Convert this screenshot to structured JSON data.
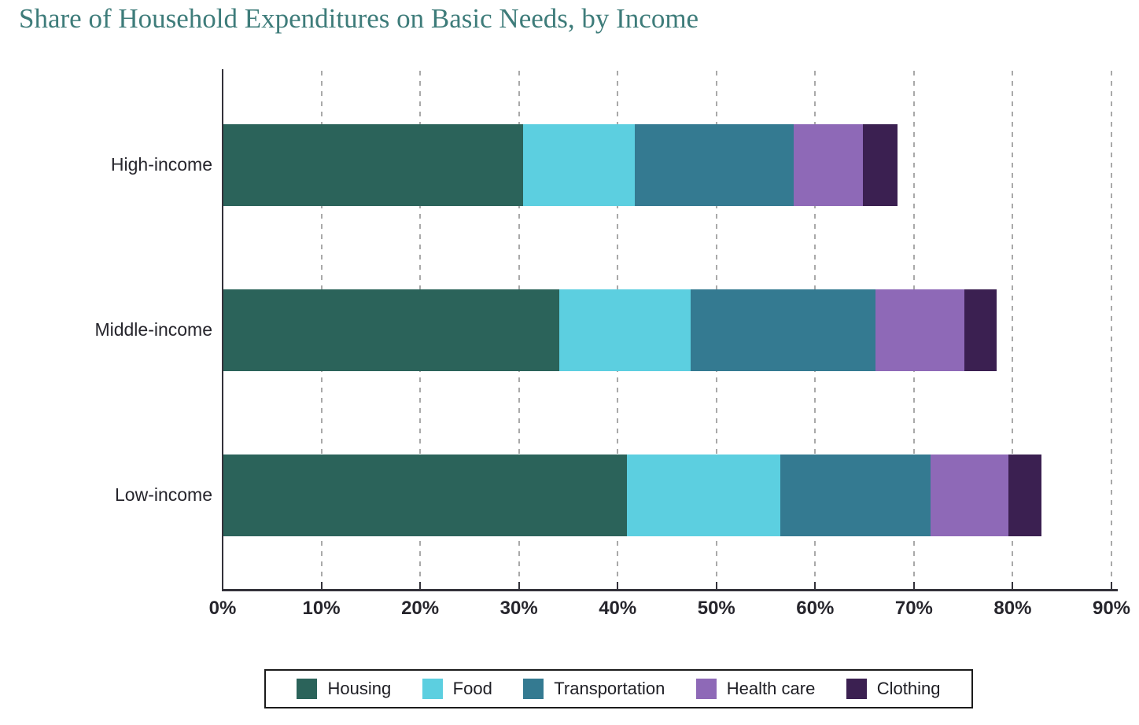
{
  "title": "Share of Household Expenditures on Basic Needs, by Income",
  "colors": {
    "title_text": "#3E7C7A",
    "axis_text": "#26252C",
    "axis_line": "#33323A",
    "gridline": "#A9A9A9",
    "legend_border": "#1B1B1B"
  },
  "chart_data": {
    "type": "bar",
    "orientation": "horizontal",
    "stacked": true,
    "title": "Share of Household Expenditures on Basic Needs, by Income",
    "categories": [
      "High-income",
      "Middle-income",
      "Low-income"
    ],
    "series": [
      {
        "name": "Housing",
        "color": "#2B635A",
        "values": [
          30.4,
          34.1,
          40.9
        ]
      },
      {
        "name": "Food",
        "color": "#5CCFE0",
        "values": [
          11.3,
          13.3,
          15.6
        ]
      },
      {
        "name": "Transportation",
        "color": "#347A91",
        "values": [
          16.1,
          18.7,
          15.2
        ]
      },
      {
        "name": "Health care",
        "color": "#8E69B7",
        "values": [
          7.0,
          9.0,
          7.9
        ]
      },
      {
        "name": "Clothing",
        "color": "#3B2051",
        "values": [
          3.5,
          3.3,
          3.3
        ]
      }
    ],
    "x_ticks": [
      "0%",
      "10%",
      "20%",
      "30%",
      "40%",
      "50%",
      "60%",
      "70%",
      "80%",
      "90%"
    ],
    "x_range": [
      0,
      90
    ],
    "xlabel": "",
    "ylabel": "",
    "grid": "vertical-dashed",
    "legend_position": "bottom"
  }
}
